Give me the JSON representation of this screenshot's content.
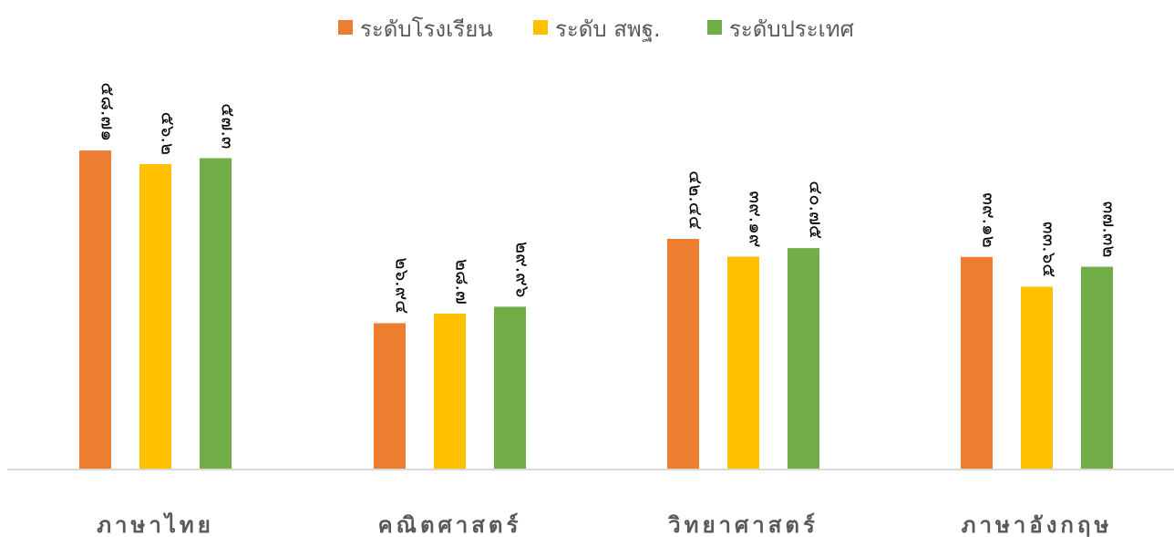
{
  "chart_data": {
    "type": "bar",
    "title": "",
    "xlabel": "",
    "ylabel": "",
    "ylim": [
      0,
      60
    ],
    "grid": false,
    "legend": "top",
    "categories": [
      "ภาษาไทย",
      "คณิตศาสตร์",
      "วิทยาศาสตร์",
      "ภาษาอังกฤษ"
    ],
    "series": [
      {
        "name": "ระดับโรงเรียน",
        "color": "#ED7D31",
        "values": [
          58.71,
          26.94,
          42.44,
          39.12
        ],
        "labels": [
          "๕๘.๗๑",
          "๒๖.๙๔",
          "๔๒.๔๔",
          "๓๙.๑๒"
        ]
      },
      {
        "name": "ระดับ สพฐ.",
        "color": "#FFC000",
        "values": [
          56.2,
          28.7,
          39.19,
          33.65
        ],
        "labels": [
          "๕๖.๒",
          "๒๘.๗",
          "๓๙.๑๙",
          "๓๓.๖๕"
        ]
      },
      {
        "name": "ระดับประเทศ",
        "color": "#70AD47",
        "values": [
          57.3,
          29.96,
          40.75,
          37.32
        ],
        "labels": [
          "๕๗.๓",
          "๒๙.๙๖",
          "๔๐.๗๕",
          "๓๗.๓๒"
        ]
      }
    ]
  }
}
